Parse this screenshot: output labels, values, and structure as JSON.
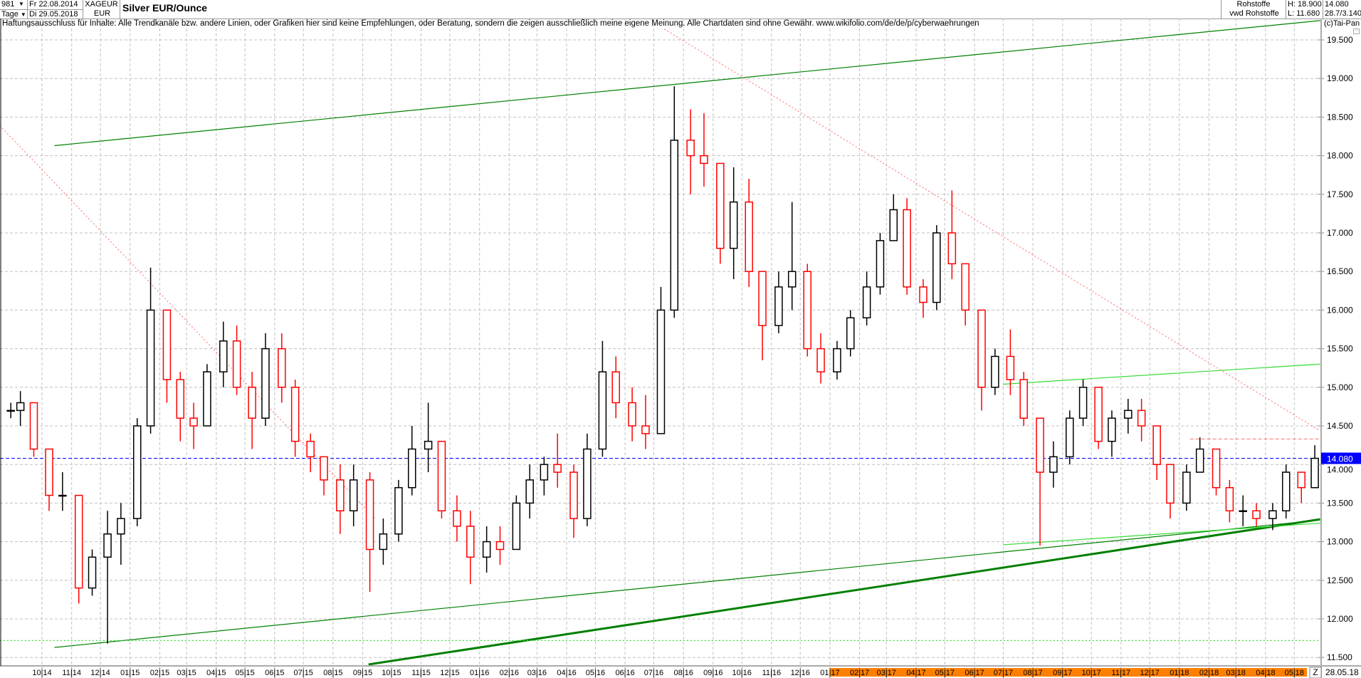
{
  "header": {
    "count": "981",
    "count_dropdown_icon": "triangle-down-icon",
    "period": "Tage",
    "date_from": "Fr 22.08.2014",
    "date_to": "Di 29.05.2018",
    "symbol": "XAGEUR",
    "currency": "EUR",
    "title": "Silver EUR/Ounce",
    "exchange": "Rohstoffe",
    "source": "vwd Rohstoffe",
    "high": "H: 18.900",
    "low": "L: 11.680",
    "last": "14.080",
    "change": "28.7/3.140"
  },
  "disclaimer": "Haftungsausschluss für Inhalte: Alle Trendkanäle bzw. andere Linien, oder Grafiken hier sind keine Empfehlungen, oder Beratung, sondern die zeigen ausschließlich meine eigene Meinung. Alle Chartdaten sind ohne Gewähr.  www.wikifolio.com/de/de/p/cyberwaehrungen",
  "copyright": "(c)Tai-Pan",
  "axis_end_marker": "Z",
  "axis_end_date": "28.05.18",
  "colors": {
    "up": "#000000",
    "down": "#ff0000",
    "last_price": "#0000ff",
    "channel": "#008000",
    "channel_light": "#33dd33",
    "resistance": "#ff8080",
    "year_band": "#ff8000",
    "grid": "#c0c0c0"
  },
  "chart_data": {
    "type": "candlestick",
    "ylim": [
      11.39,
      19.73
    ],
    "y_ticks": [
      "11.500",
      "12.000",
      "12.500",
      "13.000",
      "13.500",
      "14.000",
      "14.500",
      "15.000",
      "15.500",
      "16.000",
      "16.500",
      "17.000",
      "17.500",
      "18.000",
      "18.500",
      "19.000",
      "19.500"
    ],
    "x_ticks": [
      {
        "date": "2014-10-01",
        "label": "10|14"
      },
      {
        "date": "2014-11-01",
        "label": "11|14"
      },
      {
        "date": "2014-12-01",
        "label": "12|14"
      },
      {
        "date": "2015-01-01",
        "label": "01|15"
      },
      {
        "date": "2015-02-01",
        "label": "02|15"
      },
      {
        "date": "2015-03-01",
        "label": "03|15"
      },
      {
        "date": "2015-04-01",
        "label": "04|15"
      },
      {
        "date": "2015-05-01",
        "label": "05|15"
      },
      {
        "date": "2015-06-01",
        "label": "06|15"
      },
      {
        "date": "2015-07-01",
        "label": "07|15"
      },
      {
        "date": "2015-08-01",
        "label": "08|15"
      },
      {
        "date": "2015-09-01",
        "label": "09|15"
      },
      {
        "date": "2015-10-01",
        "label": "10|15"
      },
      {
        "date": "2015-11-01",
        "label": "11|15"
      },
      {
        "date": "2015-12-01",
        "label": "12|15"
      },
      {
        "date": "2016-01-01",
        "label": "01|16"
      },
      {
        "date": "2016-02-01",
        "label": "02|16"
      },
      {
        "date": "2016-03-01",
        "label": "03|16"
      },
      {
        "date": "2016-04-01",
        "label": "04|16"
      },
      {
        "date": "2016-05-01",
        "label": "05|16"
      },
      {
        "date": "2016-06-01",
        "label": "06|16"
      },
      {
        "date": "2016-07-01",
        "label": "07|16"
      },
      {
        "date": "2016-08-01",
        "label": "08|16"
      },
      {
        "date": "2016-09-01",
        "label": "09|16"
      },
      {
        "date": "2016-10-01",
        "label": "10|16"
      },
      {
        "date": "2016-11-01",
        "label": "11|16"
      },
      {
        "date": "2016-12-01",
        "label": "12|16"
      },
      {
        "date": "2017-01-01",
        "label": "01|17"
      },
      {
        "date": "2017-02-01",
        "label": "02|17"
      },
      {
        "date": "2017-03-01",
        "label": "03|17"
      },
      {
        "date": "2017-04-01",
        "label": "04|17"
      },
      {
        "date": "2017-05-01",
        "label": "05|17"
      },
      {
        "date": "2017-06-01",
        "label": "06|17"
      },
      {
        "date": "2017-07-01",
        "label": "07|17"
      },
      {
        "date": "2017-08-01",
        "label": "08|17"
      },
      {
        "date": "2017-09-01",
        "label": "09|17"
      },
      {
        "date": "2017-10-01",
        "label": "10|17"
      },
      {
        "date": "2017-11-01",
        "label": "11|17"
      },
      {
        "date": "2017-12-01",
        "label": "12|17"
      },
      {
        "date": "2018-01-01",
        "label": "01|18"
      },
      {
        "date": "2018-02-01",
        "label": "02|18"
      },
      {
        "date": "2018-03-01",
        "label": "03|18"
      },
      {
        "date": "2018-04-01",
        "label": "04|18"
      },
      {
        "date": "2018-05-01",
        "label": "05|18"
      }
    ],
    "highlight_range": [
      "2017-01-01",
      "2018-05-28"
    ],
    "last_price": 14.08,
    "grid": true,
    "candles": [
      [
        "2014-08-22",
        14.7,
        14.8,
        14.6,
        14.7
      ],
      [
        "2014-09-01",
        14.7,
        14.95,
        14.5,
        14.8
      ],
      [
        "2014-09-15",
        14.8,
        14.8,
        14.1,
        14.2
      ],
      [
        "2014-10-01",
        14.2,
        14.2,
        13.4,
        13.6
      ],
      [
        "2014-10-15",
        13.6,
        13.9,
        13.4,
        13.6
      ],
      [
        "2014-11-01",
        13.6,
        13.6,
        12.2,
        12.4
      ],
      [
        "2014-11-15",
        12.4,
        12.9,
        12.3,
        12.8
      ],
      [
        "2014-12-01",
        12.8,
        13.4,
        11.68,
        13.1
      ],
      [
        "2014-12-15",
        13.1,
        13.5,
        12.7,
        13.3
      ],
      [
        "2015-01-01",
        13.3,
        14.6,
        13.2,
        14.5
      ],
      [
        "2015-01-15",
        14.5,
        16.55,
        14.4,
        16.0
      ],
      [
        "2015-02-01",
        16.0,
        16.0,
        14.8,
        15.1
      ],
      [
        "2015-02-15",
        15.1,
        15.2,
        14.3,
        14.6
      ],
      [
        "2015-03-01",
        14.6,
        14.8,
        14.2,
        14.5
      ],
      [
        "2015-03-15",
        14.5,
        15.3,
        14.5,
        15.2
      ],
      [
        "2015-04-01",
        15.2,
        15.85,
        15.0,
        15.6
      ],
      [
        "2015-04-15",
        15.6,
        15.8,
        14.9,
        15.0
      ],
      [
        "2015-05-01",
        15.0,
        15.2,
        14.2,
        14.6
      ],
      [
        "2015-05-15",
        14.6,
        15.7,
        14.5,
        15.5
      ],
      [
        "2015-06-01",
        15.5,
        15.7,
        14.8,
        15.0
      ],
      [
        "2015-06-15",
        15.0,
        15.1,
        14.1,
        14.3
      ],
      [
        "2015-07-01",
        14.3,
        14.4,
        13.9,
        14.1
      ],
      [
        "2015-07-15",
        14.1,
        14.1,
        13.6,
        13.8
      ],
      [
        "2015-08-01",
        13.8,
        14.0,
        13.1,
        13.4
      ],
      [
        "2015-08-15",
        13.4,
        14.0,
        13.2,
        13.8
      ],
      [
        "2015-09-01",
        13.8,
        13.9,
        12.35,
        12.9
      ],
      [
        "2015-09-15",
        12.9,
        13.3,
        12.7,
        13.1
      ],
      [
        "2015-10-01",
        13.1,
        13.8,
        13.0,
        13.7
      ],
      [
        "2015-10-15",
        13.7,
        14.5,
        13.6,
        14.2
      ],
      [
        "2015-11-01",
        14.2,
        14.8,
        13.9,
        14.3
      ],
      [
        "2015-11-15",
        14.3,
        14.3,
        13.3,
        13.4
      ],
      [
        "2015-12-01",
        13.4,
        13.6,
        13.0,
        13.2
      ],
      [
        "2015-12-15",
        13.2,
        13.4,
        12.45,
        12.8
      ],
      [
        "2016-01-01",
        12.8,
        13.2,
        12.6,
        13.0
      ],
      [
        "2016-01-15",
        13.0,
        13.2,
        12.7,
        12.9
      ],
      [
        "2016-02-01",
        12.9,
        13.6,
        12.9,
        13.5
      ],
      [
        "2016-02-15",
        13.5,
        14.0,
        13.3,
        13.8
      ],
      [
        "2016-03-01",
        13.8,
        14.1,
        13.6,
        14.0
      ],
      [
        "2016-03-15",
        14.0,
        14.4,
        13.7,
        13.9
      ],
      [
        "2016-04-01",
        13.9,
        14.0,
        13.05,
        13.3
      ],
      [
        "2016-04-15",
        13.3,
        14.4,
        13.2,
        14.2
      ],
      [
        "2016-05-01",
        14.2,
        15.6,
        14.1,
        15.2
      ],
      [
        "2016-05-15",
        15.2,
        15.4,
        14.6,
        14.8
      ],
      [
        "2016-06-01",
        14.8,
        15.0,
        14.3,
        14.5
      ],
      [
        "2016-06-15",
        14.5,
        14.9,
        14.2,
        14.4
      ],
      [
        "2016-07-01",
        14.4,
        16.3,
        14.4,
        16.0
      ],
      [
        "2016-07-15",
        16.0,
        18.9,
        15.9,
        18.2
      ],
      [
        "2016-08-01",
        18.2,
        18.6,
        17.5,
        18.0
      ],
      [
        "2016-08-15",
        18.0,
        18.55,
        17.6,
        17.9
      ],
      [
        "2016-09-01",
        17.9,
        17.9,
        16.6,
        16.8
      ],
      [
        "2016-09-15",
        16.8,
        17.85,
        16.4,
        17.4
      ],
      [
        "2016-10-01",
        17.4,
        17.7,
        16.3,
        16.5
      ],
      [
        "2016-10-15",
        16.5,
        16.5,
        15.35,
        15.8
      ],
      [
        "2016-11-01",
        15.8,
        16.5,
        15.7,
        16.3
      ],
      [
        "2016-11-15",
        16.3,
        17.4,
        16.0,
        16.5
      ],
      [
        "2016-12-01",
        16.5,
        16.6,
        15.4,
        15.5
      ],
      [
        "2016-12-15",
        15.5,
        15.7,
        15.05,
        15.2
      ],
      [
        "2017-01-01",
        15.2,
        15.6,
        15.1,
        15.5
      ],
      [
        "2017-01-15",
        15.5,
        16.0,
        15.4,
        15.9
      ],
      [
        "2017-02-01",
        15.9,
        16.5,
        15.8,
        16.3
      ],
      [
        "2017-02-15",
        16.3,
        17.0,
        16.2,
        16.9
      ],
      [
        "2017-03-01",
        16.9,
        17.5,
        16.9,
        17.3
      ],
      [
        "2017-03-15",
        17.3,
        17.45,
        16.2,
        16.3
      ],
      [
        "2017-04-01",
        16.3,
        16.4,
        15.9,
        16.1
      ],
      [
        "2017-04-15",
        16.1,
        17.1,
        16.0,
        17.0
      ],
      [
        "2017-05-01",
        17.0,
        17.55,
        16.4,
        16.6
      ],
      [
        "2017-05-15",
        16.6,
        16.6,
        15.8,
        16.0
      ],
      [
        "2017-06-01",
        16.0,
        16.0,
        14.7,
        15.0
      ],
      [
        "2017-06-15",
        15.0,
        15.5,
        14.9,
        15.4
      ],
      [
        "2017-07-01",
        15.4,
        15.75,
        14.9,
        15.1
      ],
      [
        "2017-07-15",
        15.1,
        15.2,
        14.5,
        14.6
      ],
      [
        "2017-08-01",
        14.6,
        14.6,
        12.95,
        13.9
      ],
      [
        "2017-08-15",
        13.9,
        14.3,
        13.7,
        14.1
      ],
      [
        "2017-09-01",
        14.1,
        14.7,
        14.0,
        14.6
      ],
      [
        "2017-09-15",
        14.6,
        15.1,
        14.5,
        15.0
      ],
      [
        "2017-10-01",
        15.0,
        15.0,
        14.2,
        14.3
      ],
      [
        "2017-10-15",
        14.3,
        14.7,
        14.1,
        14.6
      ],
      [
        "2017-11-01",
        14.6,
        14.85,
        14.4,
        14.7
      ],
      [
        "2017-11-15",
        14.7,
        14.85,
        14.3,
        14.5
      ],
      [
        "2017-12-01",
        14.5,
        14.5,
        13.8,
        14.0
      ],
      [
        "2017-12-15",
        14.0,
        14.0,
        13.3,
        13.5
      ],
      [
        "2018-01-01",
        13.5,
        14.0,
        13.4,
        13.9
      ],
      [
        "2018-01-15",
        13.9,
        14.35,
        13.9,
        14.2
      ],
      [
        "2018-02-01",
        14.2,
        14.2,
        13.6,
        13.7
      ],
      [
        "2018-02-15",
        13.7,
        13.8,
        13.25,
        13.4
      ],
      [
        "2018-03-01",
        13.4,
        13.6,
        13.2,
        13.4
      ],
      [
        "2018-03-15",
        13.4,
        13.5,
        13.2,
        13.3
      ],
      [
        "2018-04-01",
        13.3,
        13.5,
        13.15,
        13.4
      ],
      [
        "2018-04-15",
        13.4,
        14.0,
        13.3,
        13.9
      ],
      [
        "2018-05-01",
        13.9,
        13.9,
        13.5,
        13.7
      ],
      [
        "2018-05-15",
        13.7,
        14.25,
        13.7,
        14.08
      ]
    ],
    "candle_fields": [
      "date",
      "open",
      "high",
      "low",
      "close"
    ],
    "trendlines": [
      {
        "name": "upper-channel",
        "style": "solid",
        "color": "channel",
        "from": [
          "2014-10-14",
          18.13
        ],
        "to": [
          "2018-05-28",
          19.75
        ]
      },
      {
        "name": "lower-channel",
        "style": "solid",
        "color": "channel",
        "from": [
          "2014-10-14",
          11.63
        ],
        "to": [
          "2018-05-28",
          13.28
        ]
      },
      {
        "name": "support-thick",
        "style": "thick",
        "color": "channel",
        "from": [
          "2015-09-07",
          11.41
        ],
        "to": [
          "2018-05-28",
          13.29
        ]
      },
      {
        "name": "upper-channel-2017",
        "style": "solid",
        "color": "channel_light",
        "from": [
          "2017-07-01",
          15.04
        ],
        "to": [
          "2018-05-28",
          15.3
        ]
      },
      {
        "name": "lower-channel-2017",
        "style": "solid",
        "color": "channel_light",
        "from": [
          "2017-07-01",
          12.96
        ],
        "to": [
          "2018-05-28",
          13.24
        ]
      },
      {
        "name": "support-horizontal",
        "style": "dotted",
        "color": "channel_light",
        "from": [
          "2014-08-18",
          11.72
        ],
        "to": [
          "2018-05-28",
          11.72
        ]
      },
      {
        "name": "resistance-2015",
        "style": "dotted",
        "color": "resistance",
        "from": [
          "2014-08-18",
          18.39
        ],
        "to": [
          "2015-09-14",
          13.3
        ]
      },
      {
        "name": "resistance-2016",
        "style": "dotted",
        "color": "resistance",
        "from": [
          "2016-07-12",
          19.64
        ],
        "to": [
          "2018-05-26",
          14.45
        ]
      },
      {
        "name": "resistance-horizontal",
        "style": "dashed",
        "color": "resistance",
        "from": [
          "2018-01-12",
          14.33
        ],
        "to": [
          "2018-05-28",
          14.33
        ]
      }
    ]
  }
}
